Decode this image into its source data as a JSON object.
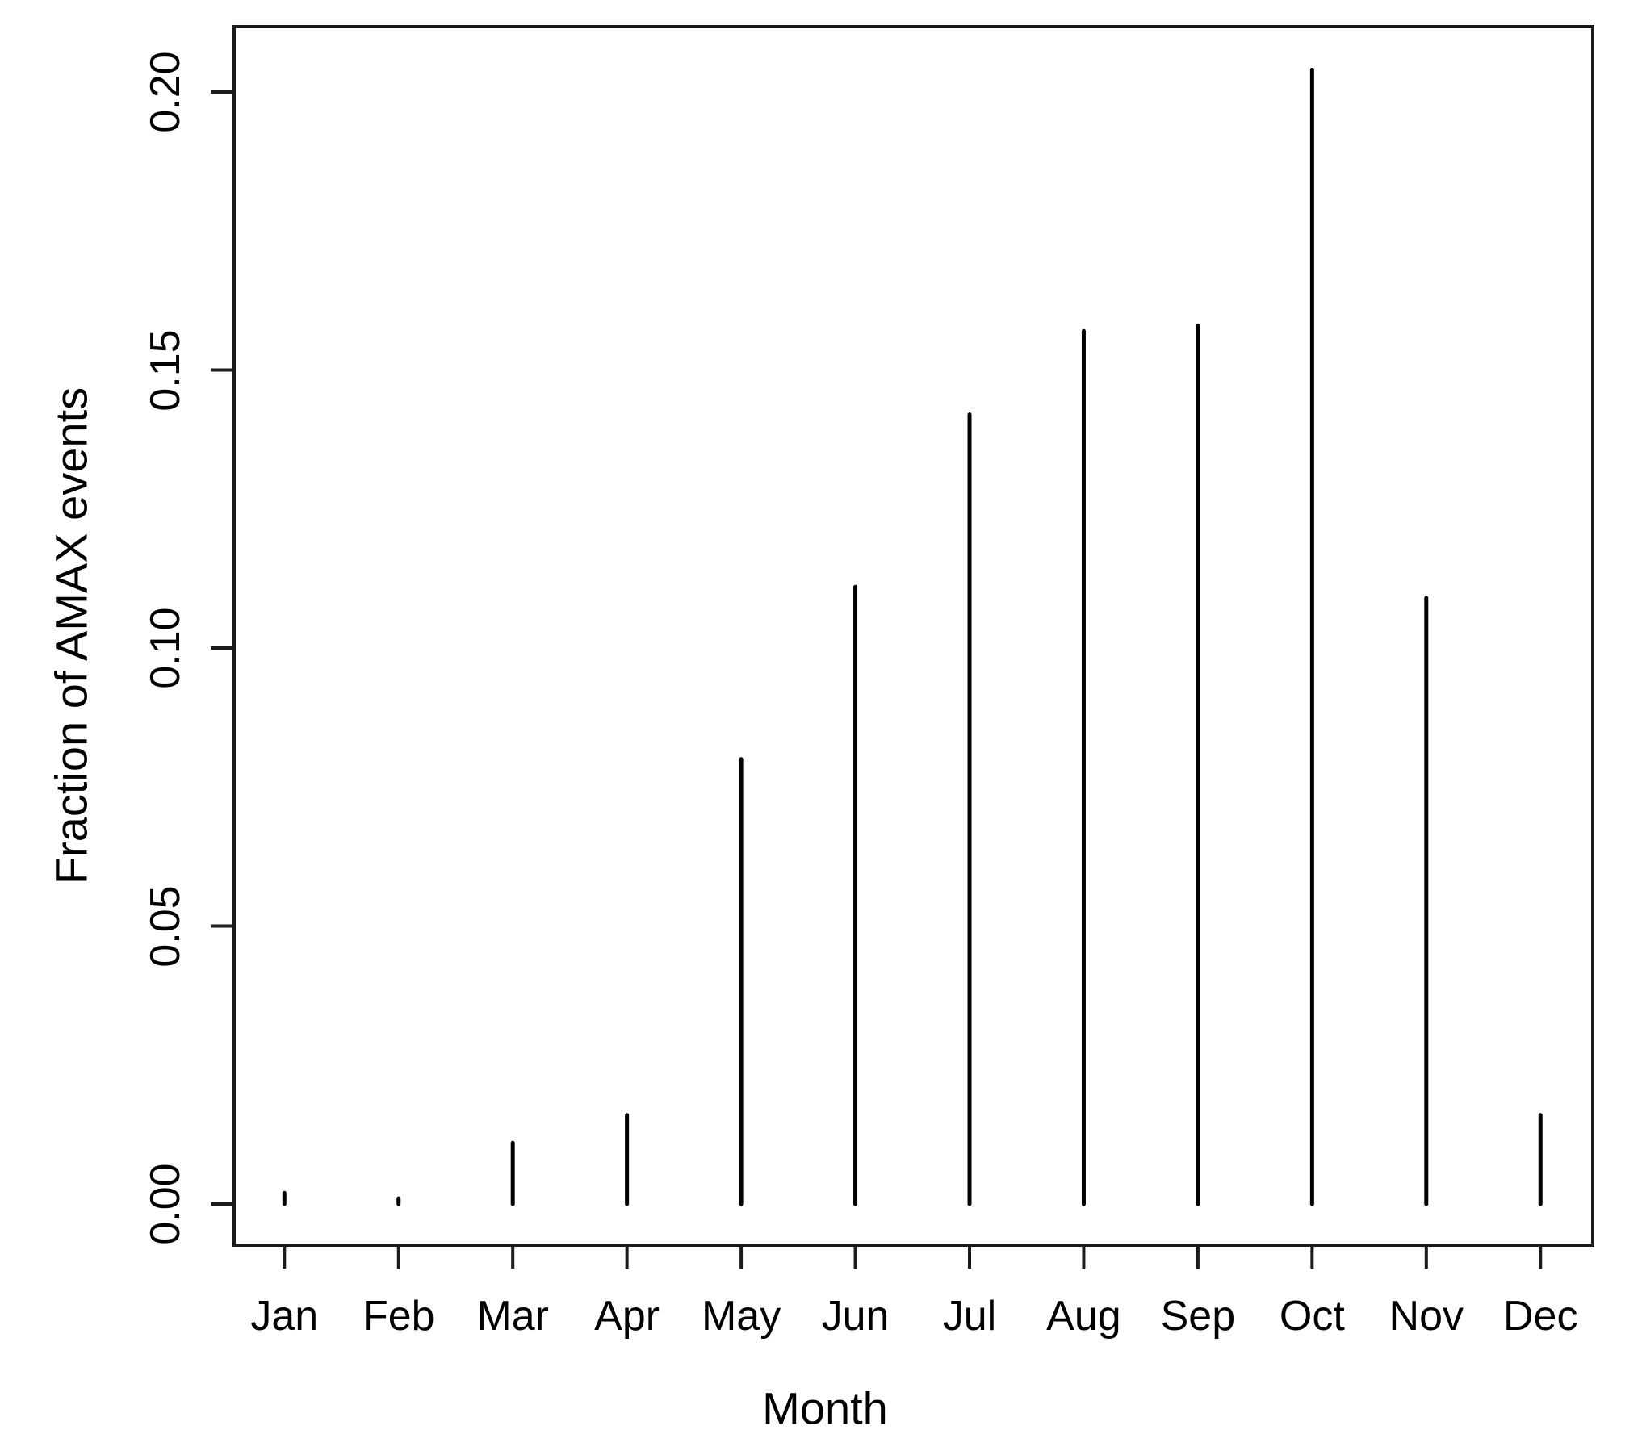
{
  "chart_data": {
    "type": "bar",
    "subtype": "vertical-spike",
    "title": "",
    "xlabel": "Month",
    "ylabel": "Fraction of AMAX events",
    "categories": [
      "Jan",
      "Feb",
      "Mar",
      "Apr",
      "May",
      "Jun",
      "Jul",
      "Aug",
      "Sep",
      "Oct",
      "Nov",
      "Dec"
    ],
    "values": [
      0.002,
      0.001,
      0.011,
      0.016,
      0.08,
      0.111,
      0.142,
      0.157,
      0.158,
      0.204,
      0.109,
      0.016
    ],
    "ylim": [
      0.0,
      0.21
    ],
    "yticks": [
      0.0,
      0.05,
      0.1,
      0.15,
      0.2
    ],
    "ytick_labels": [
      "0.00",
      "0.05",
      "0.10",
      "0.15",
      "0.20"
    ],
    "grid": false,
    "legend": null,
    "bar_color": "#000000",
    "axis_color": "#1b1b1b",
    "background_color": "#ffffff"
  }
}
